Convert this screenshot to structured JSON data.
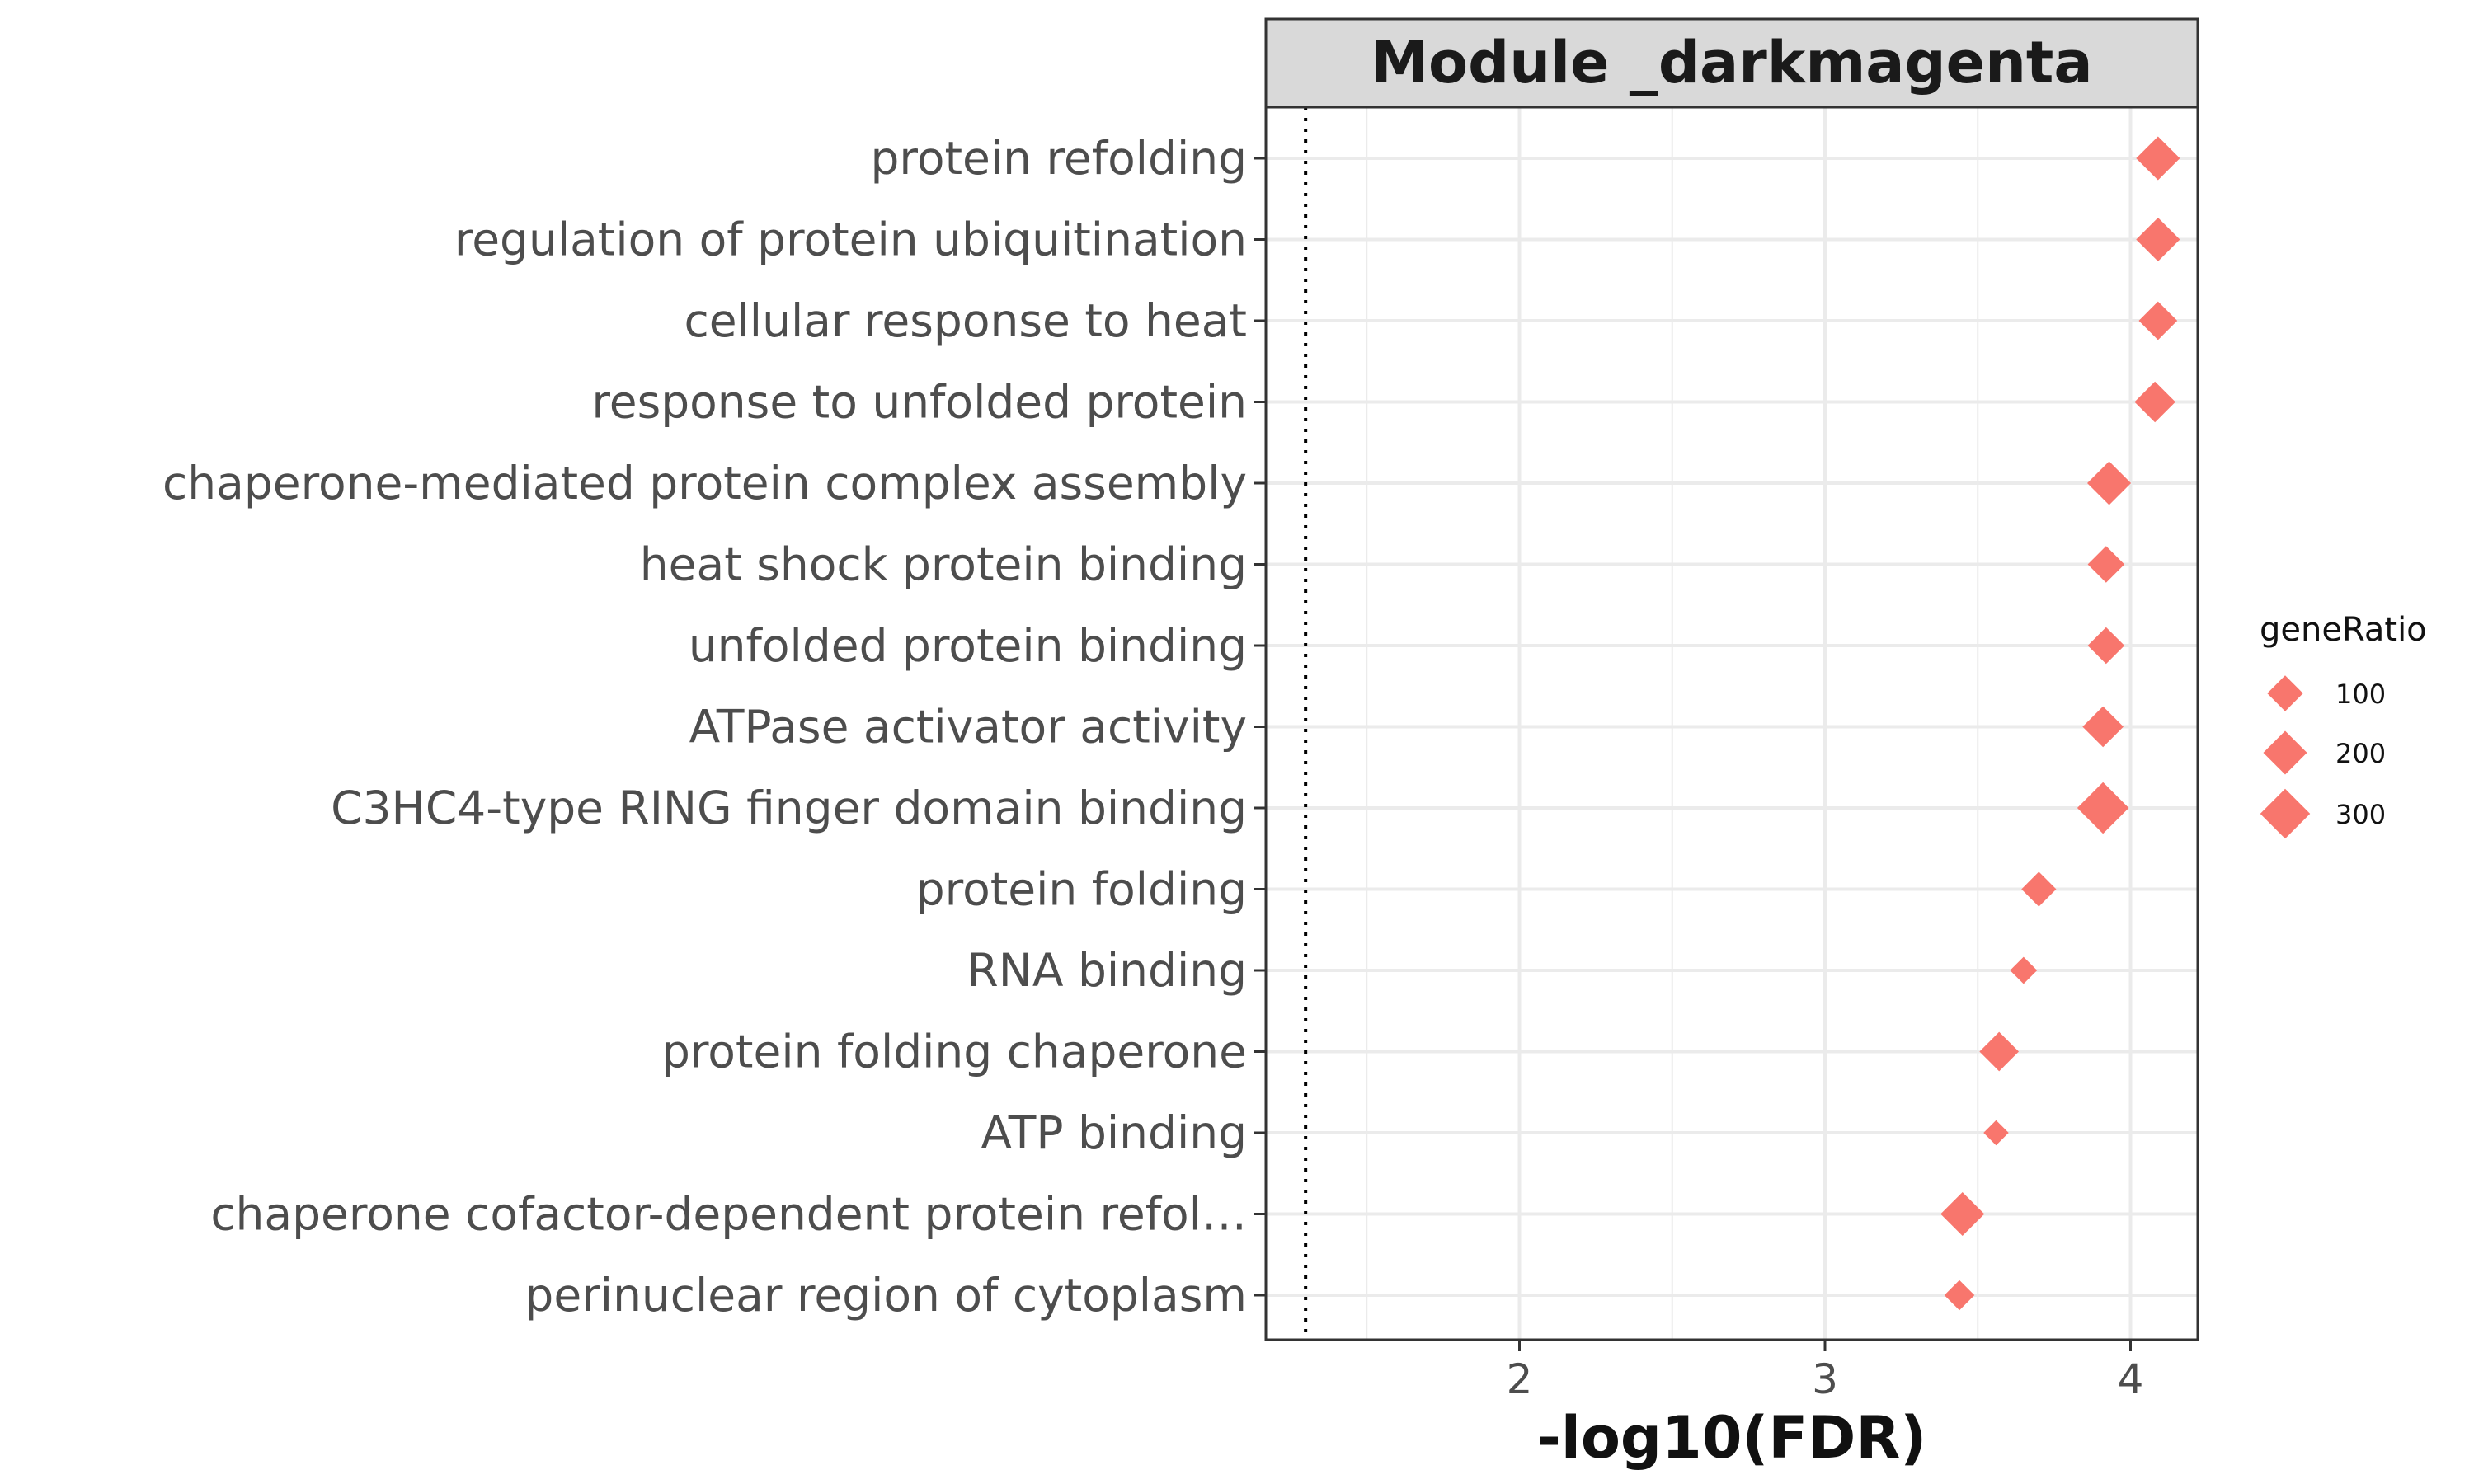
{
  "chart_data": {
    "type": "scatter",
    "strip_title": "Module _darkmagenta",
    "xlabel": "-log10(FDR)",
    "ylabel": "",
    "xlim": [
      1.17,
      4.22
    ],
    "x_ticks": [
      "2",
      "3",
      "4"
    ],
    "x_tick_values": [
      2,
      3,
      4
    ],
    "reference_line_x": 1.3,
    "grid": true,
    "marker": "diamond",
    "marker_color": "#F8766D",
    "legend": {
      "title": "geneRatio",
      "position": "right",
      "values": [
        100,
        200,
        300
      ],
      "labels": [
        "100",
        "200",
        "300"
      ]
    },
    "categories": [
      "protein refolding",
      "regulation of protein ubiquitination",
      "cellular response to heat",
      "response to unfolded protein",
      "chaperone-mediated protein complex assembly",
      "heat shock protein binding",
      "unfolded protein binding",
      "ATPase activator activity",
      "C3HC4-type RING finger domain binding",
      "protein folding",
      "RNA binding",
      "protein folding chaperone",
      "ATP binding",
      "chaperone cofactor-dependent protein refol…",
      "perinuclear region of cytoplasm"
    ],
    "x": [
      4.09,
      4.09,
      4.09,
      4.08,
      3.93,
      3.92,
      3.92,
      3.91,
      3.91,
      3.7,
      3.65,
      3.57,
      3.56,
      3.45,
      3.44
    ],
    "geneRatio": [
      200,
      200,
      130,
      160,
      200,
      110,
      110,
      160,
      330,
      90,
      30,
      140,
      20,
      200,
      50
    ]
  }
}
